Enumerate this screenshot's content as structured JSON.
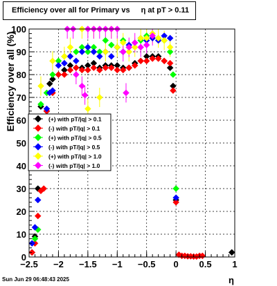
{
  "title": {
    "prefix": "Efficiency over all for Primary vs",
    "symbol": "η",
    "suffix": "at pT > 0.11"
  },
  "timestamp": "Sun Jun 29 06:48:43 2025",
  "chart_data": {
    "type": "scatter",
    "xlabel": "η",
    "ylabel": "Efficiency over all (%)",
    "xlim": [
      -2.5,
      1.0
    ],
    "ylim": [
      0,
      100
    ],
    "x_ticks": [
      "−2.5",
      "−2",
      "−1.5",
      "−1",
      "−0.5",
      "0",
      "0.5",
      "1"
    ],
    "y_ticks": [
      "0",
      "10",
      "20",
      "30",
      "40",
      "50",
      "60",
      "70",
      "80",
      "90",
      "100"
    ],
    "grid": true,
    "legend_position": "center-left",
    "series": [
      {
        "name": "(+) with pT/|q| > 0.1",
        "color": "#000000",
        "points": [
          [
            -2.45,
            2
          ],
          [
            -2.4,
            9
          ],
          [
            -2.35,
            30
          ],
          [
            -2.3,
            66
          ],
          [
            -2.2,
            64
          ],
          [
            -2.15,
            76
          ],
          [
            -2.1,
            78
          ],
          [
            -2.0,
            80
          ],
          [
            -1.9,
            82
          ],
          [
            -1.8,
            84
          ],
          [
            -1.7,
            83
          ],
          [
            -1.6,
            83
          ],
          [
            -1.5,
            84
          ],
          [
            -1.4,
            85
          ],
          [
            -1.3,
            83
          ],
          [
            -1.2,
            84
          ],
          [
            -1.1,
            84
          ],
          [
            -1.0,
            84
          ],
          [
            -0.9,
            83
          ],
          [
            -0.8,
            83
          ],
          [
            -0.7,
            85
          ],
          [
            -0.6,
            86
          ],
          [
            -0.5,
            88
          ],
          [
            -0.4,
            88
          ],
          [
            -0.3,
            88
          ],
          [
            -0.2,
            86
          ],
          [
            -0.1,
            83
          ],
          [
            -0.05,
            75
          ],
          [
            0.0,
            25
          ],
          [
            0.95,
            2
          ]
        ]
      },
      {
        "name": "(-) with pT/|q| > 0.1",
        "color": "#ff0000",
        "points": [
          [
            -2.45,
            2
          ],
          [
            -2.4,
            6
          ],
          [
            -2.35,
            18
          ],
          [
            -2.3,
            29
          ],
          [
            -2.25,
            30
          ],
          [
            -2.2,
            64
          ],
          [
            -2.1,
            72
          ],
          [
            -2.0,
            80
          ],
          [
            -1.9,
            80
          ],
          [
            -1.8,
            82
          ],
          [
            -1.7,
            83
          ],
          [
            -1.6,
            82
          ],
          [
            -1.5,
            82
          ],
          [
            -1.4,
            83
          ],
          [
            -1.3,
            82
          ],
          [
            -1.2,
            83
          ],
          [
            -1.1,
            83
          ],
          [
            -1.0,
            82
          ],
          [
            -0.9,
            82
          ],
          [
            -0.8,
            83
          ],
          [
            -0.7,
            84
          ],
          [
            -0.6,
            86
          ],
          [
            -0.5,
            86
          ],
          [
            -0.4,
            87
          ],
          [
            -0.3,
            87
          ],
          [
            -0.2,
            86
          ],
          [
            -0.1,
            85
          ],
          [
            -0.05,
            73
          ],
          [
            0.0,
            24
          ],
          [
            0.05,
            1
          ],
          [
            0.1,
            0.5
          ],
          [
            0.15,
            0.5
          ],
          [
            0.2,
            0.3
          ],
          [
            0.25,
            0.3
          ],
          [
            0.3,
            0.2
          ],
          [
            0.35,
            0.2
          ],
          [
            0.4,
            0.5
          ],
          [
            0.45,
            0.5
          ]
        ]
      },
      {
        "name": "(+) with pT/|q| > 0.5",
        "color": "#00ff00",
        "points": [
          [
            -2.4,
            8
          ],
          [
            -2.35,
            12
          ],
          [
            -2.3,
            67
          ],
          [
            -2.2,
            72
          ],
          [
            -2.1,
            80
          ],
          [
            -2.0,
            86
          ],
          [
            -1.9,
            88
          ],
          [
            -1.8,
            88
          ],
          [
            -1.7,
            90
          ],
          [
            -1.6,
            92
          ],
          [
            -1.5,
            90
          ],
          [
            -1.4,
            92
          ],
          [
            -1.3,
            90
          ],
          [
            -1.2,
            95
          ],
          [
            -1.1,
            93
          ],
          [
            -1.0,
            92
          ],
          [
            -0.9,
            95
          ],
          [
            -0.8,
            92
          ],
          [
            -0.7,
            94
          ],
          [
            -0.6,
            95
          ],
          [
            -0.5,
            97
          ],
          [
            -0.4,
            96
          ],
          [
            -0.3,
            96
          ],
          [
            -0.2,
            95
          ],
          [
            -0.1,
            90
          ],
          [
            -0.05,
            80
          ],
          [
            0.0,
            30
          ]
        ]
      },
      {
        "name": "(-) with pT/|q| > 0.5",
        "color": "#0000ff",
        "points": [
          [
            -2.45,
            6
          ],
          [
            -2.4,
            13
          ],
          [
            -2.35,
            25
          ],
          [
            -2.2,
            65
          ],
          [
            -2.15,
            72
          ],
          [
            -2.1,
            73
          ],
          [
            -2.0,
            84
          ],
          [
            -1.9,
            85
          ],
          [
            -1.8,
            88
          ],
          [
            -1.7,
            86
          ],
          [
            -1.6,
            90
          ],
          [
            -1.5,
            92
          ],
          [
            -1.4,
            90
          ],
          [
            -1.3,
            88
          ],
          [
            -1.2,
            90
          ],
          [
            -1.1,
            88
          ],
          [
            -1.0,
            92
          ],
          [
            -0.9,
            90
          ],
          [
            -0.8,
            93
          ],
          [
            -0.7,
            94
          ],
          [
            -0.6,
            96
          ],
          [
            -0.5,
            95
          ],
          [
            -0.4,
            96
          ],
          [
            -0.3,
            95
          ],
          [
            -0.2,
            97
          ],
          [
            -0.1,
            96
          ],
          [
            0.0,
            26
          ]
        ]
      },
      {
        "name": "(+) with pT/|q| > 1.0",
        "color": "#ffff00",
        "points": [
          [
            -2.3,
            75
          ],
          [
            -2.1,
            86
          ],
          [
            -1.9,
            88
          ],
          [
            -1.8,
            92
          ],
          [
            -1.6,
            100
          ],
          [
            -1.5,
            65
          ],
          [
            -1.4,
            100
          ],
          [
            -1.3,
            70
          ],
          [
            -1.2,
            90
          ],
          [
            -1.1,
            100
          ],
          [
            -1.0,
            92
          ],
          [
            -0.9,
            94
          ],
          [
            -0.8,
            90
          ],
          [
            -0.7,
            92
          ],
          [
            -0.6,
            96
          ],
          [
            -0.5,
            96
          ],
          [
            -0.4,
            98
          ],
          [
            -0.3,
            96
          ],
          [
            -0.2,
            95
          ],
          [
            -0.1,
            92
          ]
        ]
      },
      {
        "name": "(-) with pT/|q| > 1.0",
        "color": "#ff00ff",
        "points": [
          [
            -1.85,
            100
          ],
          [
            -1.75,
            100
          ],
          [
            -1.7,
            80
          ],
          [
            -1.6,
            75
          ],
          [
            -1.55,
            71
          ],
          [
            -1.5,
            100
          ],
          [
            -1.4,
            100
          ],
          [
            -1.3,
            100
          ],
          [
            -1.2,
            100
          ],
          [
            -1.1,
            100
          ],
          [
            -1.0,
            100
          ],
          [
            -0.9,
            90
          ],
          [
            -0.85,
            72
          ],
          [
            -0.8,
            92
          ],
          [
            -0.7,
            94
          ],
          [
            -0.6,
            92
          ],
          [
            -0.5,
            93
          ],
          [
            -0.4,
            97
          ]
        ]
      }
    ]
  }
}
